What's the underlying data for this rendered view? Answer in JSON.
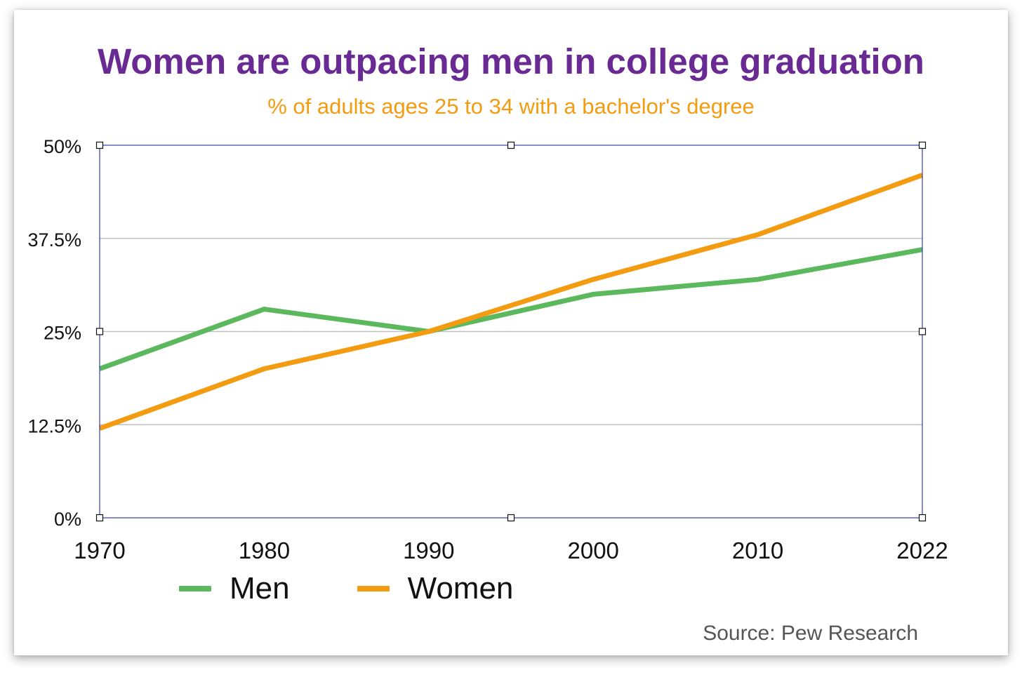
{
  "chart_data": {
    "type": "line",
    "title": "Women are outpacing men in college graduation",
    "subtitle": "% of adults ages 25 to 34 with a bachelor's degree",
    "x": [
      "1970",
      "1980",
      "1990",
      "2000",
      "2010",
      "2022"
    ],
    "y_ticks": [
      "0%",
      "12.5%",
      "25%",
      "37.5%",
      "50%"
    ],
    "y_tick_values": [
      0,
      12.5,
      25,
      37.5,
      50
    ],
    "ylim": [
      0,
      50
    ],
    "grid": true,
    "legend_position": "bottom",
    "series": [
      {
        "name": "Men",
        "color": "#5cb85c",
        "values": [
          20,
          28,
          25,
          30,
          32,
          36
        ]
      },
      {
        "name": "Women",
        "color": "#f39c12",
        "values": [
          12,
          20,
          25,
          32,
          38,
          46
        ]
      }
    ],
    "source": "Source: Pew Research"
  },
  "colors": {
    "title": "#6a2a93",
    "subtitle": "#f39c12",
    "plot_border": "#3b3bb5",
    "gridline": "#c0c0c0"
  }
}
